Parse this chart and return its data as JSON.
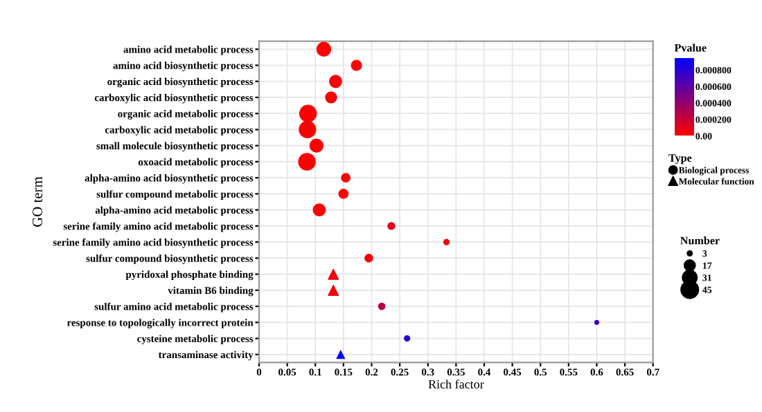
{
  "chart_data": {
    "type": "bubble",
    "orientation": "horizontal",
    "xlabel": "Rich factor",
    "ylabel": "GO term",
    "legend_title": "Type",
    "clabel": "Pvalue",
    "annotations": [
      "Number"
    ],
    "categories": [
      "amino acid metabolic process",
      "amino acid biosynthetic process",
      "organic acid biosynthetic process",
      "carboxylic acid biosynthetic process",
      "organic acid metabolic process",
      "carboxylic acid metabolic process",
      "small molecule biosynthetic process",
      "oxoacid metabolic process",
      "alpha-amino acid biosynthetic process",
      "sulfur compound metabolic process",
      "alpha-amino acid metabolic process",
      "serine family amino acid metabolic process",
      "serine family amino acid biosynthetic process",
      "sulfur compound biosynthetic process",
      "pyridoxal phosphate binding",
      "vitamin B6 binding",
      "sulfur amino acid metabolic process",
      "response to topologically incorrect protein",
      "cysteine metabolic process",
      "transaminase activity"
    ],
    "series": [
      {
        "name": "Biological process",
        "marker": "circle",
        "values": [
          0.115,
          0.173,
          0.136,
          0.128,
          0.087,
          0.086,
          0.102,
          0.085,
          0.154,
          0.15,
          0.107,
          0.235,
          0.333,
          0.195,
          null,
          null,
          0.218,
          0.6,
          0.263,
          null
        ],
        "sizes": [
          31,
          17,
          24,
          20,
          45,
          44,
          28,
          45,
          12,
          14,
          24,
          8,
          5,
          10,
          null,
          null,
          7,
          3,
          5,
          null
        ],
        "cvalues": [
          1e-05,
          1e-05,
          1e-05,
          1e-05,
          1e-05,
          1e-05,
          1e-05,
          1e-05,
          1e-05,
          1e-05,
          1e-05,
          0.0001,
          5e-05,
          5e-05,
          null,
          null,
          0.00025,
          0.00075,
          0.0008,
          null
        ],
        "colors": [
          "#fc0003",
          "#fc0003",
          "#fc0003",
          "#fc0003",
          "#fc0003",
          "#fc0003",
          "#fc0003",
          "#fc0003",
          "#fc0003",
          "#fc0003",
          "#fc0003",
          "#e4001b",
          "#f2000d",
          "#f2000d",
          null,
          null,
          "#bc0043",
          "#3600c9",
          "#2800d7",
          null
        ]
      },
      {
        "name": "Molecular function",
        "marker": "triangle",
        "values": [
          null,
          null,
          null,
          null,
          null,
          null,
          null,
          null,
          null,
          null,
          null,
          null,
          null,
          null,
          0.132,
          0.132,
          null,
          null,
          null,
          0.145
        ],
        "sizes": [
          null,
          null,
          null,
          null,
          null,
          null,
          null,
          null,
          null,
          null,
          null,
          null,
          null,
          null,
          17,
          17,
          null,
          null,
          null,
          10
        ],
        "cvalues": [
          null,
          null,
          null,
          null,
          null,
          null,
          null,
          null,
          null,
          null,
          null,
          null,
          null,
          null,
          5e-05,
          5e-05,
          null,
          null,
          null,
          0.00095
        ],
        "colors": [
          null,
          null,
          null,
          null,
          null,
          null,
          null,
          null,
          null,
          null,
          null,
          null,
          null,
          null,
          "#f2000d",
          "#f2000d",
          null,
          null,
          null,
          "#0000ff"
        ]
      }
    ],
    "xlim": [
      0,
      0.7
    ],
    "xticks": [
      0,
      0.05,
      0.1,
      0.15,
      0.2,
      0.25,
      0.3,
      0.35,
      0.4,
      0.45,
      0.5,
      0.55,
      0.6,
      0.65,
      0.7
    ],
    "clim": [
      0,
      0.00095
    ],
    "cticks": [
      {
        "value": 0,
        "label": "0.00"
      },
      {
        "value": 0.0002,
        "label": "0.000200"
      },
      {
        "value": 0.0004,
        "label": "0.000400"
      },
      {
        "value": 0.0006,
        "label": "0.000600"
      },
      {
        "value": 0.0008,
        "label": "0.000800"
      }
    ],
    "size_legend": [
      3,
      17,
      31,
      45
    ],
    "grid": true,
    "legend": "right"
  }
}
